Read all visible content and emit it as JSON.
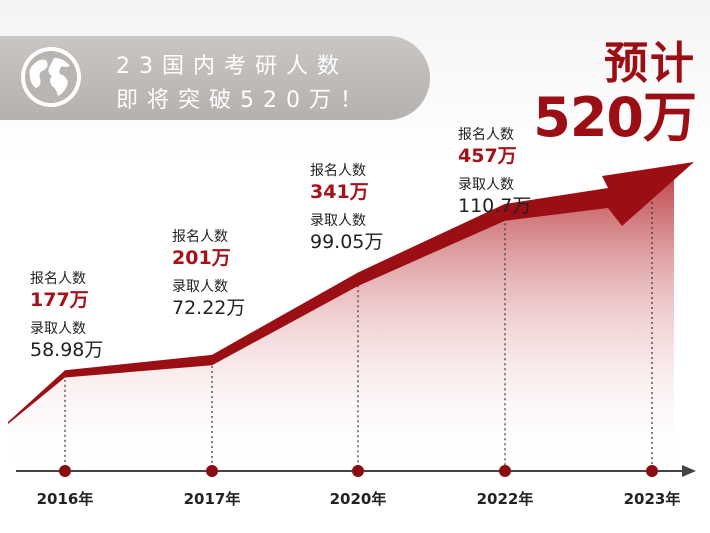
{
  "banner": {
    "line1": "23国内考研人数",
    "line2": "即将突破520万！"
  },
  "forecast": {
    "label": "预计",
    "value": "520万"
  },
  "labels": {
    "registered": "报名人数",
    "admitted": "录取人数"
  },
  "colors": {
    "accent": "#9b0f14",
    "banner": "#bdbab7"
  },
  "chart_data": {
    "type": "line",
    "categories": [
      "2016年",
      "2017年",
      "2020年",
      "2022年",
      "2023年"
    ],
    "series": [
      {
        "name": "报名人数",
        "values": [
          177,
          201,
          341,
          457,
          520
        ]
      },
      {
        "name": "录取人数",
        "values": [
          58.98,
          72.22,
          99.05,
          110.7,
          null
        ]
      }
    ],
    "points": [
      {
        "year": "2016年",
        "registered": "177万",
        "admitted": "58.98万"
      },
      {
        "year": "2017年",
        "registered": "201万",
        "admitted": "72.22万"
      },
      {
        "year": "2020年",
        "registered": "341万",
        "admitted": "99.05万"
      },
      {
        "year": "2022年",
        "registered": "457万",
        "admitted": "110.7万"
      },
      {
        "year": "2023年",
        "registered": "",
        "admitted": ""
      }
    ],
    "grid": false,
    "legend": "none"
  }
}
